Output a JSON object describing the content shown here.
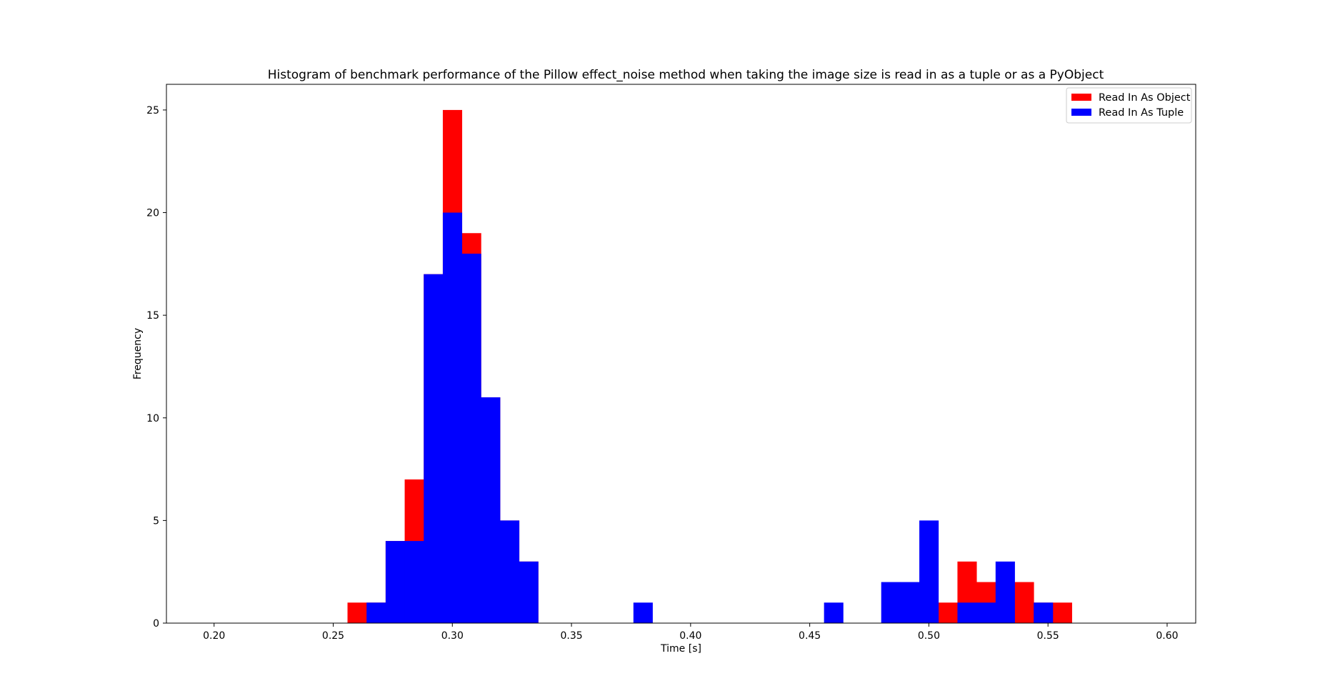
{
  "chart_data": {
    "type": "bar",
    "title": "Histogram of benchmark performance of the Pillow effect_noise method when taking the image size is read in as a tuple or as a PyObject",
    "xlabel": "Time [s]",
    "ylabel": "Frequency",
    "xlim": [
      0.18,
      0.612
    ],
    "ylim": [
      0,
      26.25
    ],
    "xticks": [
      0.2,
      0.25,
      0.3,
      0.35,
      0.4,
      0.45,
      0.5,
      0.55,
      0.6
    ],
    "xtick_labels": [
      "0.20",
      "0.25",
      "0.30",
      "0.35",
      "0.40",
      "0.45",
      "0.50",
      "0.55",
      "0.60"
    ],
    "yticks": [
      0,
      5,
      10,
      15,
      20,
      25
    ],
    "ytick_labels": [
      "0",
      "5",
      "10",
      "15",
      "20",
      "25"
    ],
    "grid": false,
    "legend_position": "top-right",
    "bin_width": 0.008,
    "series": [
      {
        "name": "Read In As Object",
        "color": "#ff0000",
        "bins": [
          {
            "x": 0.256,
            "count": 1
          },
          {
            "x": 0.264,
            "count": 1
          },
          {
            "x": 0.272,
            "count": 4
          },
          {
            "x": 0.28,
            "count": 7
          },
          {
            "x": 0.288,
            "count": 17
          },
          {
            "x": 0.296,
            "count": 25
          },
          {
            "x": 0.304,
            "count": 19
          },
          {
            "x": 0.312,
            "count": 11
          },
          {
            "x": 0.32,
            "count": 5
          },
          {
            "x": 0.328,
            "count": 3
          },
          {
            "x": 0.504,
            "count": 1
          },
          {
            "x": 0.512,
            "count": 3
          },
          {
            "x": 0.52,
            "count": 2
          },
          {
            "x": 0.536,
            "count": 2
          },
          {
            "x": 0.544,
            "count": 1
          },
          {
            "x": 0.552,
            "count": 1
          }
        ]
      },
      {
        "name": "Read In As Tuple",
        "color": "#0000ff",
        "bins": [
          {
            "x": 0.264,
            "count": 1
          },
          {
            "x": 0.272,
            "count": 4
          },
          {
            "x": 0.28,
            "count": 4
          },
          {
            "x": 0.288,
            "count": 17
          },
          {
            "x": 0.296,
            "count": 20
          },
          {
            "x": 0.304,
            "count": 18
          },
          {
            "x": 0.312,
            "count": 11
          },
          {
            "x": 0.32,
            "count": 5
          },
          {
            "x": 0.328,
            "count": 3
          },
          {
            "x": 0.376,
            "count": 1
          },
          {
            "x": 0.456,
            "count": 1
          },
          {
            "x": 0.48,
            "count": 2
          },
          {
            "x": 0.488,
            "count": 2
          },
          {
            "x": 0.496,
            "count": 5
          },
          {
            "x": 0.512,
            "count": 1
          },
          {
            "x": 0.52,
            "count": 1
          },
          {
            "x": 0.528,
            "count": 3
          },
          {
            "x": 0.544,
            "count": 1
          }
        ]
      }
    ]
  }
}
